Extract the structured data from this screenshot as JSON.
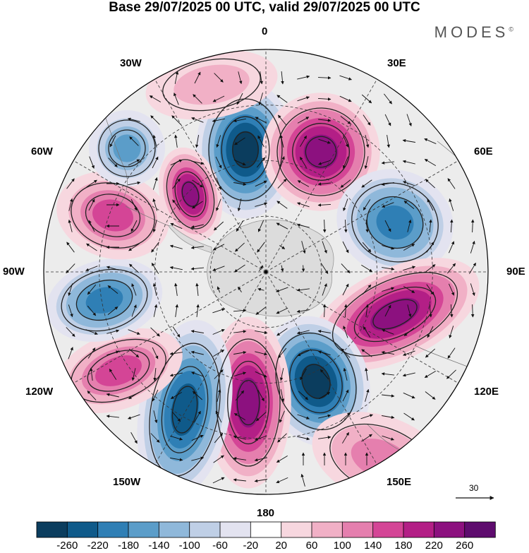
{
  "title": "Base 29/07/2025 00 UTC, valid 29/07/2025 00 UTC",
  "brand": "MODES",
  "brand_mark": "©",
  "longitude_labels": {
    "lon_0": "0",
    "lon_30e": "30E",
    "lon_60e": "60E",
    "lon_90e": "90E",
    "lon_120e": "120E",
    "lon_150e": "150E",
    "lon_180": "180",
    "lon_150w": "150W",
    "lon_120w": "120W",
    "lon_90w": "90W",
    "lon_60w": "60W",
    "lon_30w": "30W"
  },
  "reference_vector": {
    "label": "30"
  },
  "colorbar": {
    "ticks": [
      "-260",
      "-220",
      "-180",
      "-140",
      "-100",
      "-60",
      "-20",
      "20",
      "60",
      "100",
      "140",
      "180",
      "220",
      "260"
    ],
    "colors": [
      "#0b3d5e",
      "#0f5a8a",
      "#2f7fb5",
      "#5b9dc9",
      "#8fb8da",
      "#bfcfe6",
      "#e3e3f0",
      "#ffffff",
      "#f7d7df",
      "#f1b0c6",
      "#e57fae",
      "#d44596",
      "#b31f86",
      "#8c117f",
      "#5e0c6e"
    ]
  },
  "map_colors": {
    "land": "#dcdcdc",
    "neutral": "#ececec",
    "positive": [
      "#f7d7df",
      "#f1b0c6",
      "#e57fae",
      "#d44596",
      "#b31f86",
      "#8c117f"
    ],
    "negative": [
      "#e3e3f0",
      "#bfcfe6",
      "#8fb8da",
      "#5b9dc9",
      "#2f7fb5",
      "#0f5a8a",
      "#0b3d5e"
    ]
  },
  "anomaly_centers": [
    {
      "name": "neg-0",
      "sign": "neg",
      "level": 6
    },
    {
      "name": "pos-30e",
      "sign": "pos",
      "level": 5
    },
    {
      "name": "neg-60e",
      "sign": "neg",
      "level": 4
    },
    {
      "name": "pos-90e",
      "sign": "pos",
      "level": 5
    },
    {
      "name": "neg-130e",
      "sign": "neg",
      "level": 6
    },
    {
      "name": "pos-150e",
      "sign": "pos",
      "level": 2
    },
    {
      "name": "pos-175",
      "sign": "pos",
      "level": 5
    },
    {
      "name": "neg-155w",
      "sign": "neg",
      "level": 5
    },
    {
      "name": "pos-120w",
      "sign": "pos",
      "level": 3
    },
    {
      "name": "neg-95w",
      "sign": "neg",
      "level": 4
    },
    {
      "name": "pos-70w",
      "sign": "pos",
      "level": 3
    },
    {
      "name": "neg-45w",
      "sign": "neg",
      "level": 3
    },
    {
      "name": "pos-30w",
      "sign": "pos",
      "level": 5
    },
    {
      "name": "pos-20w",
      "sign": "pos",
      "level": 1
    }
  ]
}
